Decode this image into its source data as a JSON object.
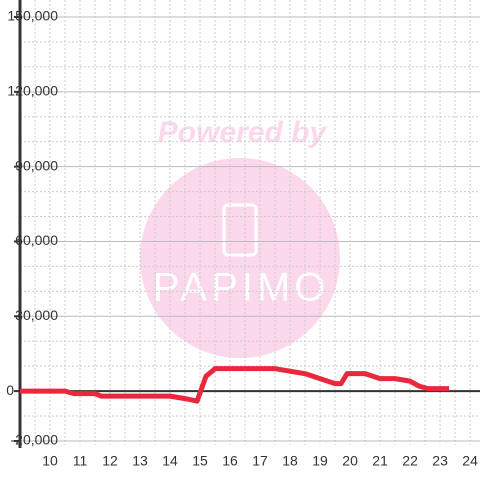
{
  "chart_data": {
    "type": "line",
    "watermark": {
      "title": "Powered by",
      "logo": "PAPIMO"
    },
    "x": [
      9.0,
      10.5,
      10.8,
      11.5,
      11.7,
      14.0,
      14.5,
      14.9,
      15.2,
      15.5,
      16.0,
      17.5,
      18.0,
      18.5,
      19.0,
      19.5,
      19.7,
      19.9,
      20.5,
      21.0,
      21.5,
      22.0,
      22.3,
      22.6,
      23.3
    ],
    "series": [
      {
        "color": "#e8283c",
        "values": [
          0,
          0,
          -1000,
          -1000,
          -2000,
          -2000,
          -3000,
          -4000,
          6000,
          9000,
          9000,
          9000,
          8000,
          7000,
          5000,
          3000,
          3000,
          7000,
          7000,
          5000,
          5000,
          4000,
          2000,
          1000,
          1000
        ]
      }
    ],
    "xlim": [
      9,
      24.33
    ],
    "xticks": [
      10,
      11,
      12,
      13,
      14,
      15,
      16,
      17,
      18,
      19,
      20,
      21,
      22,
      23,
      24
    ],
    "xminor": [
      9.5,
      10.5,
      11.5,
      12.5,
      13.5,
      14.5,
      15.5,
      16.5,
      17.5,
      18.5,
      19.5,
      20.5,
      21.5,
      22.5,
      23.5
    ],
    "ylim": [
      -20000,
      150000
    ],
    "yticks": [
      {
        "value": 150000,
        "label": "150,000"
      },
      {
        "value": 120000,
        "label": "120,000"
      },
      {
        "value": 90000,
        "label": "90,000"
      },
      {
        "value": 60000,
        "label": "60,000"
      },
      {
        "value": 30000,
        "label": "30,000"
      },
      0,
      {
        "value": -20000,
        "label": "-20,000"
      }
    ],
    "yminor": [
      140000,
      130000,
      110000,
      100000,
      80000,
      70000,
      50000,
      40000,
      20000,
      10000,
      -10000
    ],
    "grid": true
  }
}
